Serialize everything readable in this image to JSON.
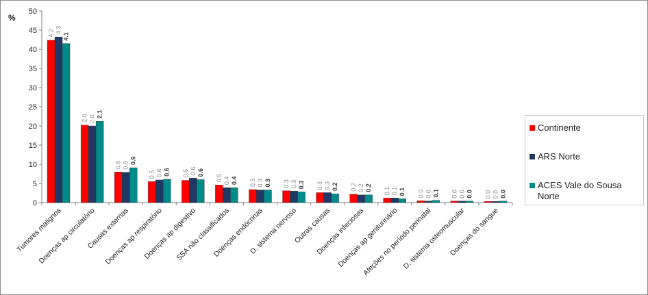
{
  "chart_data": {
    "type": "bar",
    "ylabel": "%",
    "ylim": [
      0,
      50
    ],
    "yticks": [
      0,
      5,
      10,
      15,
      20,
      25,
      30,
      35,
      40,
      45,
      50
    ],
    "grid": false,
    "legend_position": "right",
    "categories": [
      "Tumores malignos",
      "Doenças ap circulatório",
      "Causas externas",
      "Doenças ap respiratório",
      "Doenças ap digestivo",
      "SSA não classificados",
      "Doenças endócrinas",
      "D. sistema nervoso",
      "Outras causas",
      "Doenças infeciosas",
      "Doenças ap geniturinário",
      "Afeções no período perinatal",
      "D. sistema osteomuscular",
      "Doenças do sangue"
    ],
    "series": [
      {
        "name": "Continente",
        "color": "#ff0000",
        "values": [
          42.4,
          20.2,
          8.0,
          5.5,
          5.8,
          4.6,
          3.4,
          3.1,
          2.6,
          2.2,
          1.2,
          0.5,
          0.4,
          0.3
        ],
        "labels": [
          "4.2",
          "2.0",
          "0.8",
          "0.5",
          "0.6",
          "0.5",
          "0.3",
          "0.3",
          "0.3",
          "0.2",
          "0.1",
          "0.0",
          "0.0",
          "0.0"
        ]
      },
      {
        "name": "ARS Norte",
        "color": "#1f3864",
        "values": [
          43.2,
          20.0,
          7.9,
          5.9,
          6.4,
          3.9,
          3.3,
          3.0,
          2.6,
          2.0,
          1.2,
          0.4,
          0.4,
          0.3
        ],
        "labels": [
          "4.3",
          "2.0",
          "0.8",
          "0.6",
          "0.6",
          "0.4",
          "0.3",
          "0.3",
          "0.3",
          "0.2",
          "0.1",
          "0.0",
          "0.0",
          "0.0"
        ]
      },
      {
        "name": "ACES Vale do Sousa Norte",
        "color": "#008b8b",
        "values": [
          41.5,
          21.2,
          9.1,
          6.1,
          6.0,
          3.9,
          3.3,
          2.8,
          2.3,
          2.0,
          1.0,
          0.6,
          0.4,
          0.4
        ],
        "labels": [
          "4.1",
          "2.1",
          "0.9",
          "0.6",
          "0.6",
          "0.4",
          "0.3",
          "0.3",
          "0.2",
          "0.2",
          "0.1",
          "0.1",
          "0.0",
          "0.0"
        ]
      }
    ]
  },
  "legend": {
    "items": [
      "Continente",
      "ARS Norte",
      "ACES Vale do Sousa Norte"
    ]
  }
}
